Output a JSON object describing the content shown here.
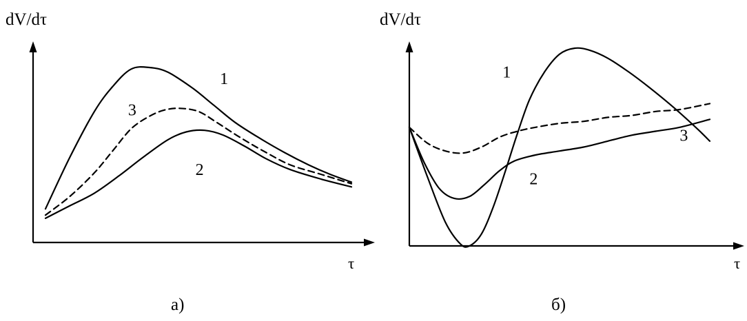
{
  "chart_data": [
    {
      "type": "line",
      "panel_label": "а)",
      "ylabel": "dV/dτ",
      "xlabel": "τ",
      "axis_color": "#000000",
      "series": [
        {
          "name": "1",
          "dashed": false,
          "color": "#000000",
          "x": [
            0,
            0.08,
            0.16,
            0.22,
            0.28,
            0.34,
            0.4,
            0.48,
            0.55,
            0.62,
            0.7,
            0.78,
            0.86,
            0.93,
            1.0
          ],
          "y": [
            0.1,
            0.43,
            0.72,
            0.88,
            0.99,
            1.0,
            0.97,
            0.87,
            0.76,
            0.65,
            0.55,
            0.46,
            0.38,
            0.32,
            0.27
          ]
        },
        {
          "name": "2",
          "dashed": false,
          "color": "#000000",
          "x": [
            0,
            0.08,
            0.16,
            0.24,
            0.32,
            0.4,
            0.46,
            0.52,
            0.58,
            0.65,
            0.72,
            0.8,
            0.9,
            1.0
          ],
          "y": [
            0.04,
            0.12,
            0.2,
            0.31,
            0.43,
            0.54,
            0.59,
            0.6,
            0.57,
            0.5,
            0.42,
            0.35,
            0.29,
            0.24
          ]
        },
        {
          "name": "3",
          "dashed": true,
          "color": "#000000",
          "x": [
            0,
            0.08,
            0.16,
            0.22,
            0.28,
            0.34,
            0.39,
            0.44,
            0.5,
            0.56,
            0.64,
            0.72,
            0.8,
            0.9,
            1.0
          ],
          "y": [
            0.06,
            0.18,
            0.33,
            0.47,
            0.61,
            0.69,
            0.73,
            0.74,
            0.72,
            0.65,
            0.55,
            0.46,
            0.38,
            0.32,
            0.26
          ]
        }
      ],
      "labels": [
        {
          "text": "1",
          "x": 0.57,
          "y": 0.93
        },
        {
          "text": "2",
          "x": 0.49,
          "y": 0.35
        },
        {
          "text": "3",
          "x": 0.27,
          "y": 0.73
        }
      ],
      "xlim": [
        0,
        1
      ],
      "ylim": [
        0,
        1
      ],
      "grid": false,
      "ticks": false
    },
    {
      "type": "line",
      "panel_label": "б)",
      "ylabel": "dV/dτ",
      "xlabel": "τ",
      "axis_color": "#000000",
      "series": [
        {
          "name": "1",
          "dashed": false,
          "color": "#000000",
          "x": [
            0,
            0.06,
            0.12,
            0.17,
            0.2,
            0.24,
            0.28,
            0.32,
            0.36,
            0.4,
            0.45,
            0.5,
            0.55,
            0.6,
            0.66,
            0.73,
            0.8,
            0.88,
            0.96,
            1.0
          ],
          "y": [
            0.6,
            0.35,
            0.12,
            0.01,
            0.0,
            0.06,
            0.2,
            0.38,
            0.57,
            0.74,
            0.88,
            0.97,
            1.0,
            0.99,
            0.95,
            0.88,
            0.8,
            0.7,
            0.59,
            0.53
          ]
        },
        {
          "name": "2",
          "dashed": false,
          "color": "#000000",
          "x": [
            0,
            0.05,
            0.1,
            0.15,
            0.2,
            0.25,
            0.3,
            0.35,
            0.42,
            0.5,
            0.58,
            0.66,
            0.74,
            0.82,
            0.9,
            1.0
          ],
          "y": [
            0.6,
            0.42,
            0.29,
            0.24,
            0.25,
            0.31,
            0.38,
            0.43,
            0.46,
            0.48,
            0.5,
            0.53,
            0.56,
            0.58,
            0.6,
            0.64
          ]
        },
        {
          "name": "3",
          "dashed": true,
          "color": "#000000",
          "x": [
            0,
            0.06,
            0.12,
            0.18,
            0.24,
            0.3,
            0.36,
            0.42,
            0.5,
            0.58,
            0.66,
            0.74,
            0.82,
            0.9,
            1.0
          ],
          "y": [
            0.6,
            0.52,
            0.48,
            0.47,
            0.5,
            0.55,
            0.58,
            0.6,
            0.62,
            0.63,
            0.65,
            0.66,
            0.68,
            0.69,
            0.72
          ]
        }
      ],
      "labels": [
        {
          "text": "1",
          "x": 0.31,
          "y": 0.88
        },
        {
          "text": "2",
          "x": 0.4,
          "y": 0.34
        },
        {
          "text": "3",
          "x": 0.9,
          "y": 0.56
        }
      ],
      "xlim": [
        0,
        1
      ],
      "ylim": [
        0,
        1
      ],
      "grid": false,
      "ticks": false
    }
  ]
}
